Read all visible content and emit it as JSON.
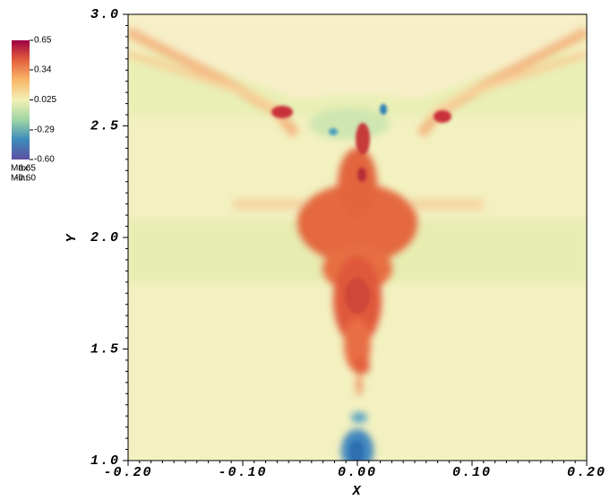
{
  "chart_data": {
    "type": "heatmap",
    "xlabel": "X",
    "ylabel": "Y",
    "xlim": [
      -0.2,
      0.2
    ],
    "ylim": [
      1.0,
      3.0
    ],
    "xticks": [
      {
        "value": -0.2,
        "label": "-0.20"
      },
      {
        "value": -0.1,
        "label": "-0.10"
      },
      {
        "value": 0,
        "label": "0.00"
      },
      {
        "value": 0.1,
        "label": "0.10"
      },
      {
        "value": 0.2,
        "label": "0.20"
      }
    ],
    "yticks": [
      {
        "value": 1.0,
        "label": "1.0"
      },
      {
        "value": 1.5,
        "label": "1.5"
      },
      {
        "value": 2.0,
        "label": "2.0"
      },
      {
        "value": 2.5,
        "label": "2.5"
      },
      {
        "value": 3.0,
        "label": "3.0"
      }
    ],
    "colorbar": {
      "lim": [
        -0.6,
        0.65
      ],
      "ticks": [
        0.65,
        0.34,
        0.025,
        -0.29,
        {
          "value": -0.6,
          "label": "-0.60"
        }
      ],
      "colors": [
        "#5e4fa2",
        "#3c8bbb",
        "#9fd6a4",
        "#f2f0b6",
        "#f9b868",
        "#e4603f",
        "#9e0142"
      ],
      "max_label": "Max:",
      "max": 0.65,
      "min_label": "Min:",
      "min": {
        "value": -0.6,
        "label": "-0.60"
      }
    }
  }
}
